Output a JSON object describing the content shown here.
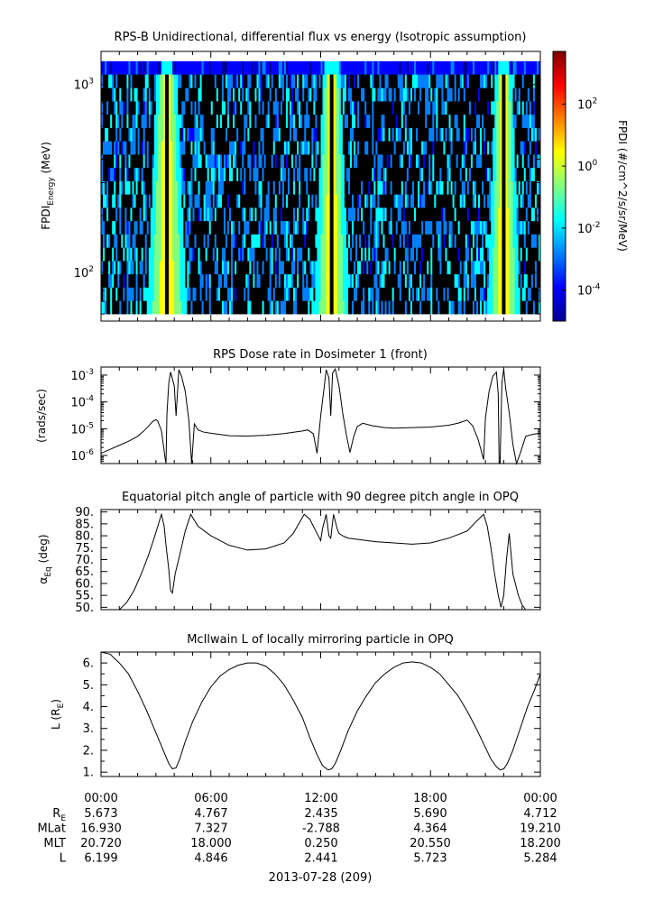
{
  "chart_data": [
    {
      "type": "heatmap",
      "title": "RPS-B  Unidirectional, differential flux vs energy (Isotropic assumption)",
      "ylabel": "FPDI",
      "ylabel_sub": "Energy",
      "ylabel_unit": " (MeV)",
      "yscale": "log",
      "ylim": [
        55,
        1500
      ],
      "yticks": [
        {
          "label": "10",
          "exp": "3",
          "value": 1000
        },
        {
          "label": "10",
          "exp": "2",
          "value": 100
        }
      ],
      "xlim_hours": [
        0,
        24
      ],
      "x_ticks": [
        "00:00",
        "06:00",
        "12:00",
        "18:00",
        "00:00"
      ],
      "energy_channels": 19,
      "colorbar": {
        "label": "FPDI (#/cm^2/s/sr/MeV)",
        "scale": "log",
        "range": [
          1e-05,
          5000
        ],
        "ticks": [
          {
            "base": "10",
            "exp": "2",
            "value": 100
          },
          {
            "base": "10",
            "exp": "0",
            "value": 1
          },
          {
            "base": "10",
            "exp": "-2",
            "value": 0.01
          },
          {
            "base": "10",
            "exp": "-4",
            "value": 0.0001
          }
        ],
        "colors": [
          "#00008f",
          "#0000ff",
          "#0080ff",
          "#00ffff",
          "#80ff80",
          "#ffff00",
          "#ff8000",
          "#ff0000",
          "#800000"
        ]
      },
      "belt_passes": [
        {
          "start_h": 2.6,
          "end_h": 4.8,
          "center_h": 3.6
        },
        {
          "start_h": 11.7,
          "end_h": 13.6,
          "center_h": 12.6
        },
        {
          "start_h": 21.0,
          "end_h": 22.8,
          "center_h": 22.0
        }
      ]
    },
    {
      "type": "line",
      "title": "RPS  Dose rate in Dosimeter 1 (front)",
      "ylabel": "(rads/sec)",
      "yscale": "log",
      "ylim": [
        5e-07,
        0.002
      ],
      "yticks": [
        {
          "base": "10",
          "exp": "-3",
          "value": 0.001
        },
        {
          "base": "10",
          "exp": "-4",
          "value": 0.0001
        },
        {
          "base": "10",
          "exp": "-5",
          "value": 1e-05
        },
        {
          "base": "10",
          "exp": "-6",
          "value": 1e-06
        }
      ],
      "series": [
        {
          "x_hours": [
            0,
            0.5,
            1,
            1.5,
            2,
            2.3,
            2.6,
            2.8,
            3.0,
            3.1,
            3.3,
            3.5,
            3.55,
            3.6,
            3.7,
            3.8,
            4.0,
            4.1,
            4.25,
            4.4,
            4.6,
            4.8,
            4.95,
            5.1,
            5.3,
            5.6,
            6,
            7,
            8,
            9,
            10,
            11,
            11.3,
            11.6,
            11.8,
            12.0,
            12.2,
            12.3,
            12.45,
            12.55,
            12.65,
            12.8,
            13.0,
            13.2,
            13.4,
            13.6,
            13.8,
            14.0,
            14.3,
            14.8,
            15.5,
            16,
            17,
            18,
            19,
            19.5,
            20,
            20.3,
            20.6,
            20.9,
            21.0,
            21.2,
            21.4,
            21.6,
            21.7,
            21.75,
            21.8,
            21.9,
            22.0,
            22.1,
            22.3,
            22.5,
            22.7,
            22.9,
            23.2,
            23.6,
            24
          ],
          "values": [
            1.2e-06,
            1.7e-06,
            2.4e-06,
            3.4e-06,
            5.2e-06,
            7.8e-06,
            1.25e-05,
            1.8e-05,
            2.2e-05,
            1.9e-05,
            8.5e-06,
            8e-07,
            3e-07,
            3.5e-05,
            0.0005,
            0.0013,
            0.0004,
            3e-05,
            0.0016,
            0.0009,
            0.00025,
            2e-05,
            2e-07,
            1.5e-05,
            9e-06,
            7.5e-06,
            6.8e-06,
            5.5e-06,
            5.3e-06,
            5.7e-06,
            6.6e-06,
            8.2e-06,
            9e-06,
            6.5e-06,
            1.2e-06,
            3e-05,
            0.0004,
            0.0016,
            0.0008,
            3e-05,
            0.0012,
            0.0017,
            0.0004,
            4e-05,
            6e-06,
            1.3e-06,
            5e-06,
            1.2e-05,
            1.6e-05,
            1.3e-05,
            1.1e-05,
            1.05e-05,
            1.1e-05,
            1.15e-05,
            1.35e-05,
            1.6e-05,
            2.1e-05,
            1.3e-05,
            4e-06,
            7e-07,
            2.5e-05,
            0.00025,
            0.0009,
            0.0013,
            0.0002,
            3e-07,
            2e-07,
            0.0005,
            0.0017,
            0.00035,
            4e-05,
            2.6e-06,
            3e-07,
            1.2e-06,
            5.2e-06,
            6.2e-06,
            6.8e-06
          ]
        }
      ]
    },
    {
      "type": "line",
      "title": "Equatorial pitch angle of particle with 90 degree pitch angle in OPQ",
      "ylabel": "α",
      "ylabel_sub": "Eq",
      "ylabel_unit": " (deg)",
      "ylim": [
        49,
        91
      ],
      "yticks": [
        "50.",
        "55.",
        "60.",
        "65.",
        "70.",
        "75.",
        "80.",
        "85.",
        "90."
      ],
      "series": [
        {
          "x_hours": [
            1,
            1.4,
            1.8,
            2.2,
            2.6,
            2.9,
            3.1,
            3.3,
            3.45,
            3.55,
            3.7,
            3.8,
            3.9,
            4.05,
            4.3,
            4.6,
            4.9,
            5.3,
            6,
            7,
            8,
            9,
            10,
            10.5,
            10.8,
            11.1,
            11.4,
            11.6,
            11.8,
            12.0,
            12.1,
            12.3,
            12.45,
            12.55,
            12.7,
            12.9,
            13.0,
            13.2,
            13.5,
            14,
            15,
            16,
            17,
            18,
            19,
            20,
            20.5,
            20.9,
            21.1,
            21.3,
            21.5,
            21.7,
            21.85,
            22.0,
            22.15,
            22.3,
            22.5,
            22.8,
            23.0,
            23.2
          ],
          "values": [
            49,
            52,
            57,
            64,
            72,
            79,
            84,
            89,
            84,
            76,
            66,
            57,
            56,
            64,
            72,
            82,
            89,
            84,
            80,
            76,
            74,
            74.5,
            77,
            81,
            85,
            89,
            87,
            84,
            81,
            78,
            83,
            89,
            80,
            79,
            89,
            83,
            81,
            80,
            79,
            78.5,
            77.5,
            77,
            76.5,
            77,
            79,
            82,
            86,
            89,
            84,
            75,
            64,
            55,
            50,
            55,
            70,
            81,
            64,
            55,
            51,
            49
          ]
        }
      ]
    },
    {
      "type": "line",
      "title": "McIlwain L of locally mirroring particle in OPQ",
      "ylabel": "L (R",
      "ylabel_sub": "E",
      "ylabel_unit": ")",
      "ylim": [
        0.8,
        6.5
      ],
      "yticks": [
        "1.",
        "2.",
        "3.",
        "4.",
        "5.",
        "6."
      ],
      "series": [
        {
          "x_hours": [
            0,
            0.5,
            1,
            1.5,
            2,
            2.5,
            3,
            3.4,
            3.7,
            3.9,
            4.1,
            4.3,
            4.6,
            5,
            5.5,
            6,
            6.5,
            7,
            7.5,
            8,
            8.5,
            9,
            9.5,
            10,
            10.5,
            11,
            11.4,
            11.8,
            12.1,
            12.4,
            12.6,
            12.8,
            13.1,
            13.5,
            14,
            14.5,
            15,
            15.5,
            16,
            16.5,
            17,
            17.5,
            18,
            18.5,
            19,
            19.5,
            20,
            20.5,
            20.9,
            21.3,
            21.6,
            21.8,
            22.0,
            22.2,
            22.5,
            22.9,
            23.3,
            23.7,
            24
          ],
          "values": [
            6.5,
            6.4,
            6.0,
            5.5,
            4.7,
            3.8,
            2.8,
            2.0,
            1.4,
            1.15,
            1.2,
            1.6,
            2.4,
            3.3,
            4.2,
            4.9,
            5.4,
            5.7,
            5.9,
            6.0,
            6.0,
            5.85,
            5.5,
            5.0,
            4.3,
            3.5,
            2.6,
            1.8,
            1.3,
            1.1,
            1.15,
            1.4,
            2.0,
            2.9,
            3.8,
            4.5,
            5.1,
            5.5,
            5.8,
            6.0,
            6.05,
            6.0,
            5.8,
            5.5,
            5.0,
            4.5,
            3.8,
            3.0,
            2.3,
            1.6,
            1.25,
            1.1,
            1.15,
            1.4,
            2.0,
            3.0,
            4.0,
            4.8,
            5.5
          ]
        }
      ]
    }
  ],
  "footer": {
    "times": [
      "00:00",
      "06:00",
      "12:00",
      "18:00",
      "00:00"
    ],
    "rows": [
      {
        "label": "R",
        "sub": "E",
        "values": [
          "5.673",
          "4.767",
          "2.435",
          "5.690",
          "4.712"
        ]
      },
      {
        "label": "MLat",
        "sub": "",
        "values": [
          "16.930",
          "7.327",
          "-2.788",
          "4.364",
          "19.210"
        ]
      },
      {
        "label": "MLT",
        "sub": "",
        "values": [
          "20.720",
          "18.000",
          "0.250",
          "20.550",
          "18.200"
        ]
      },
      {
        "label": "L",
        "sub": "",
        "values": [
          "6.199",
          "4.846",
          "2.441",
          "5.723",
          "5.284"
        ]
      }
    ],
    "date": "2013-07-28 (209)"
  }
}
